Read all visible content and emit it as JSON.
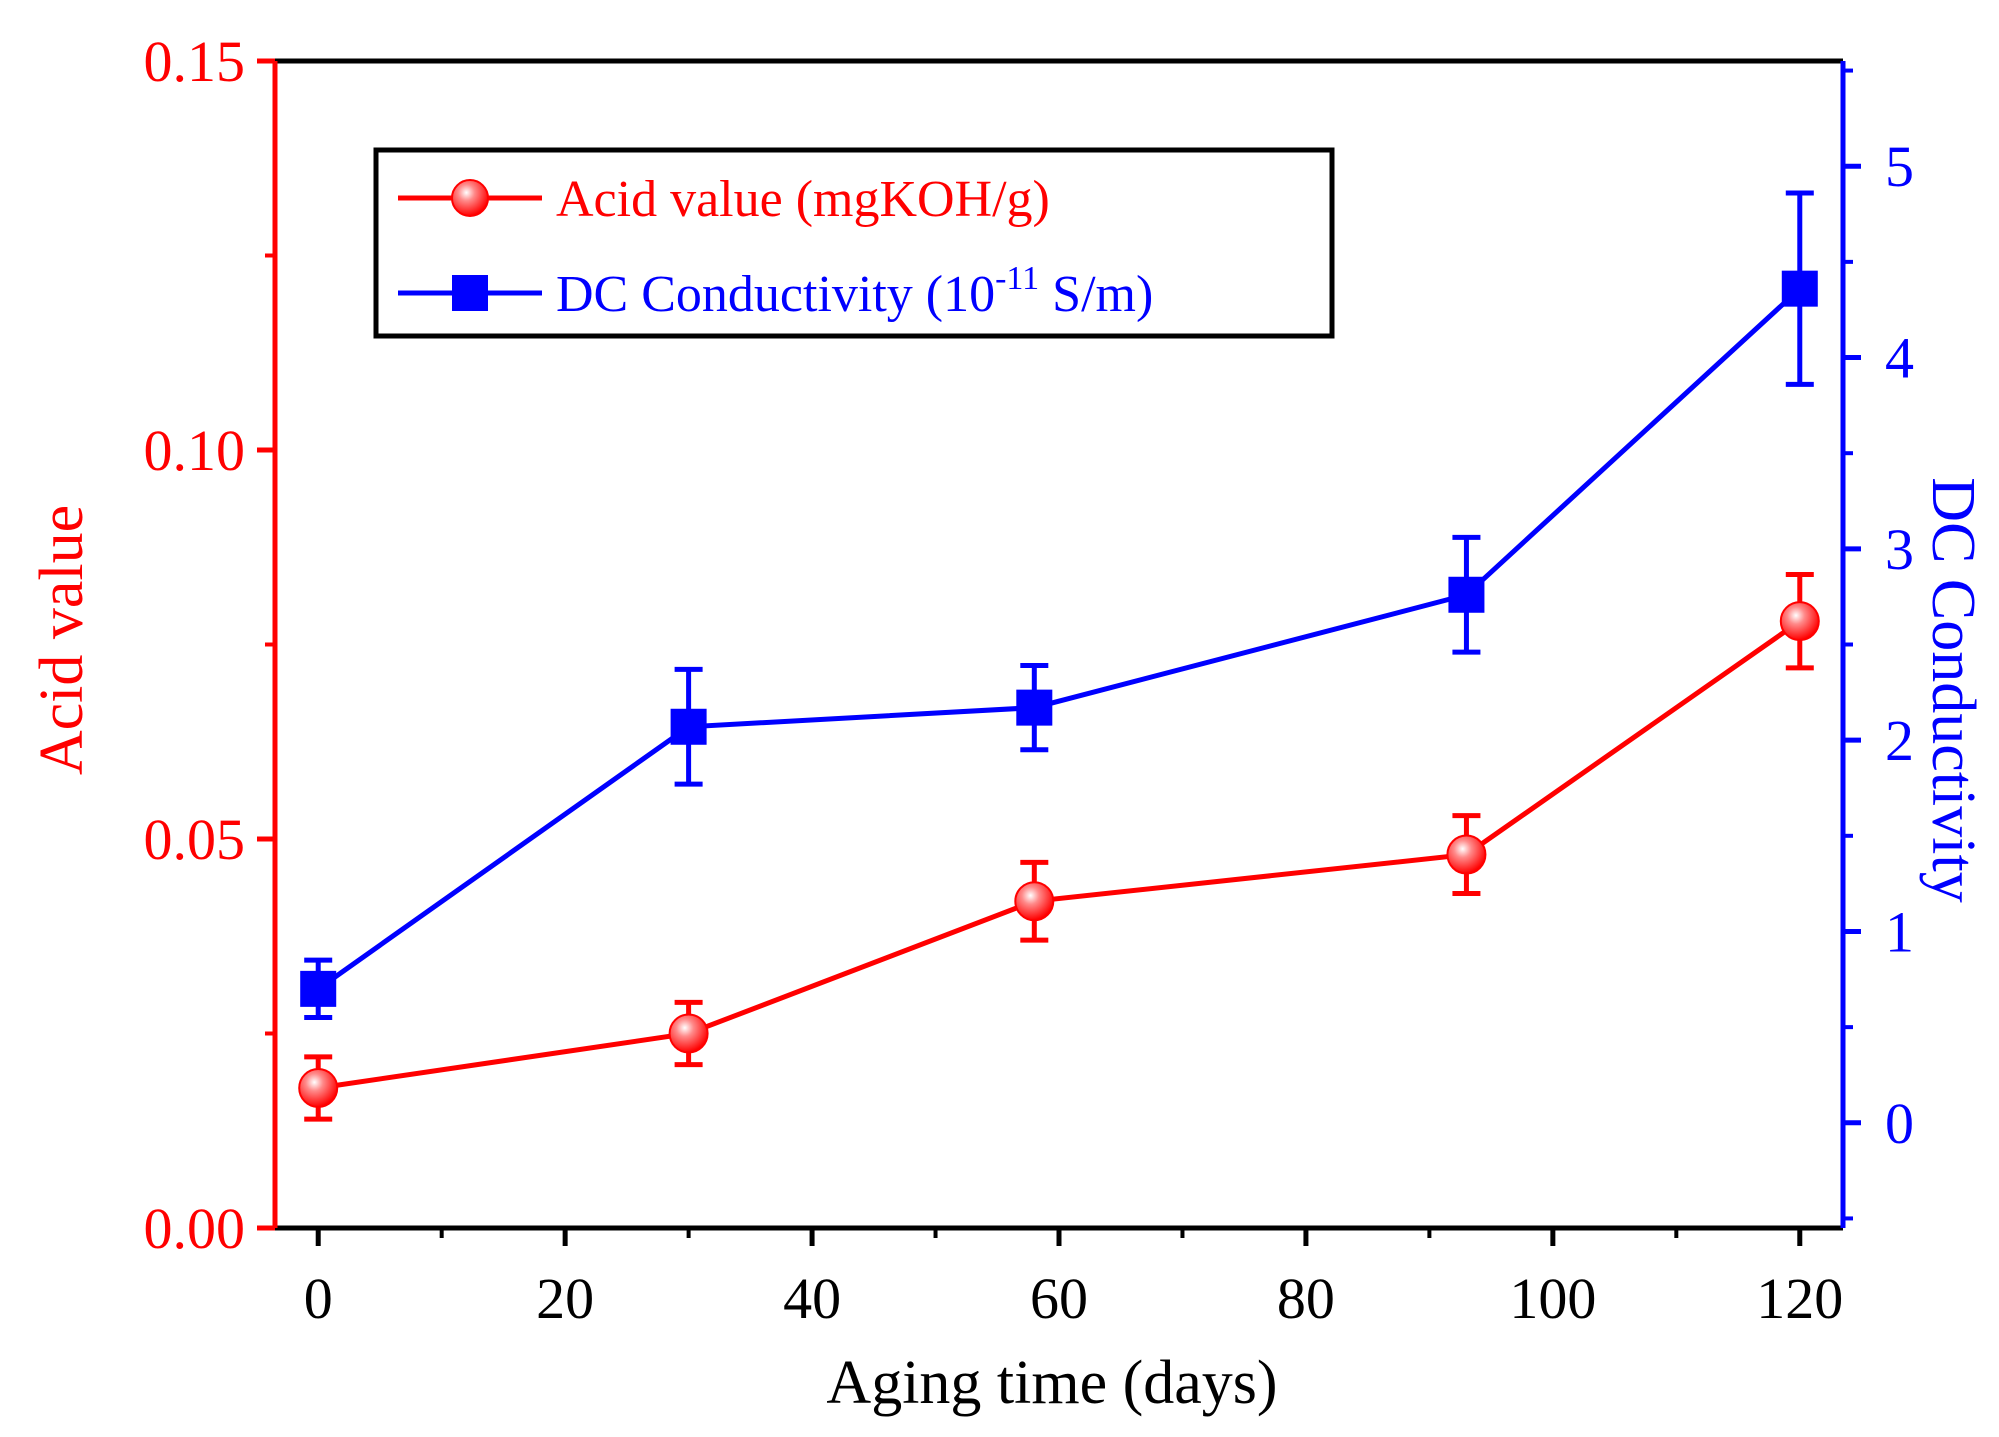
{
  "colors": {
    "acid": "#ff0000",
    "conductivity": "#0000ff",
    "frame": "#000000"
  },
  "chart_data": {
    "type": "line",
    "xlabel": "Aging time (days)",
    "ylabel_left": "Acid value",
    "ylabel_right": "DC Conductivity",
    "xlim": [
      -3.5,
      123.5
    ],
    "ylim_left": [
      0.0,
      0.15
    ],
    "ylim_right": [
      -0.55,
      5.55
    ],
    "x_ticks": [
      0,
      20,
      40,
      60,
      80,
      100,
      120
    ],
    "x_tick_labels": [
      "0",
      "20",
      "40",
      "60",
      "80",
      "100",
      "120"
    ],
    "y_left_ticks": [
      0.0,
      0.05,
      0.1,
      0.15
    ],
    "y_left_tick_labels": [
      "0.00",
      "0.05",
      "0.10",
      "0.15"
    ],
    "y_right_ticks": [
      0,
      1,
      2,
      3,
      4,
      5
    ],
    "y_right_tick_labels": [
      "0",
      "1",
      "2",
      "3",
      "4",
      "5"
    ],
    "legend_position": "top-left",
    "series": [
      {
        "name": "Acid value (mgKOH/g)",
        "axis": "left",
        "marker": "circle",
        "x": [
          0,
          30,
          58,
          93,
          120
        ],
        "y": [
          0.018,
          0.025,
          0.042,
          0.048,
          0.078
        ],
        "error": [
          0.004,
          0.004,
          0.005,
          0.005,
          0.006
        ]
      },
      {
        "name_prefix": "DC Conductivity (10",
        "name_superscript": "-11",
        "name_suffix": " S/m)",
        "axis": "right",
        "marker": "square",
        "x": [
          0,
          30,
          58,
          93,
          120
        ],
        "y": [
          0.7,
          2.07,
          2.17,
          2.76,
          4.36
        ],
        "error": [
          0.15,
          0.3,
          0.22,
          0.3,
          0.5
        ]
      }
    ]
  }
}
